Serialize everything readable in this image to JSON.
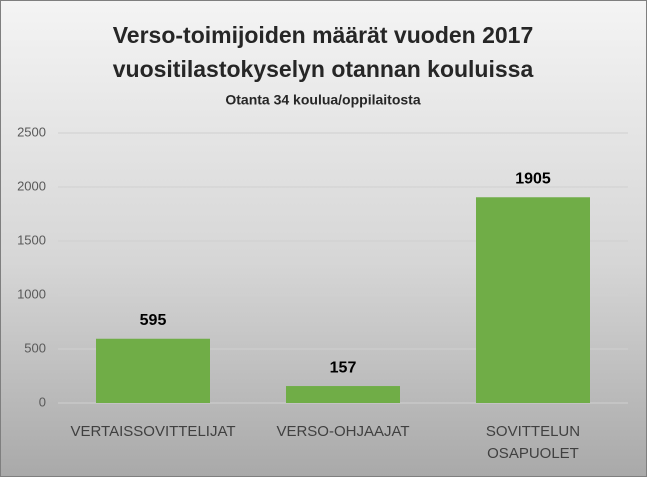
{
  "chart_data": {
    "type": "bar",
    "title": [
      "Verso-toimijoiden määrät vuoden 2017",
      "vuositilastokyselyn otannan kouluissa"
    ],
    "subtitle": "Otanta 34 koulua/oppilaitosta",
    "categories": [
      "VERTAISSOVITTELIJAT",
      "VERSO-OHJAAJAT",
      "SOVITTELUN OSAPUOLET"
    ],
    "values": [
      595,
      157,
      1905
    ],
    "color": "#70ad47",
    "ylim": [
      0,
      2500
    ],
    "yticks": [
      0,
      500,
      1000,
      1500,
      2000,
      2500
    ],
    "grid": true
  }
}
